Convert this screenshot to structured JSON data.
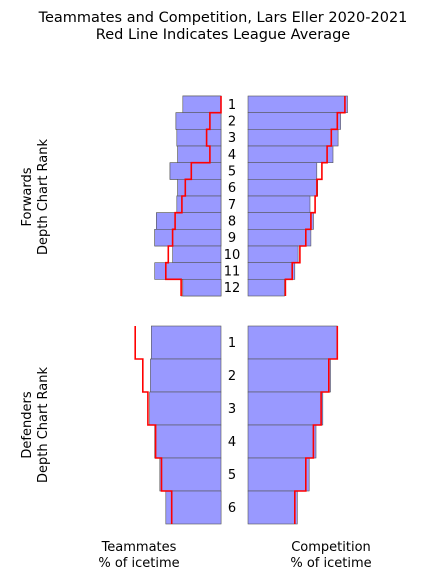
{
  "chart_data": {
    "type": "bar",
    "title": "Teammates and Competition, Lars Eller 2020-2021",
    "subtitle": "Red Line Indicates League Average",
    "colors": {
      "blue_bar": "#9999ff",
      "pink_bar": "#ff9999",
      "league_line": "#ff0000",
      "bar_edge": "#555555"
    },
    "column_labels": {
      "teammates": [
        "Teammates",
        "% of icetime"
      ],
      "competition": [
        "Competition",
        "% of icetime"
      ]
    },
    "groups": [
      {
        "key": "forwards",
        "ylabel": [
          "Forwards",
          "Depth Chart Rank"
        ],
        "ranks": [
          "1",
          "2",
          "3",
          "4",
          "5",
          "6",
          "7",
          "8",
          "9",
          "10",
          "11",
          "12"
        ],
        "teammates_value": [
          45,
          53,
          52,
          51,
          60,
          51,
          52,
          76,
          78,
          57,
          78,
          45
        ],
        "teammates_league_avg": [
          0,
          13,
          17,
          13,
          35,
          42,
          46,
          54,
          57,
          62,
          65,
          47
        ],
        "teammates_pink": [
          true,
          true,
          true,
          true,
          true,
          true,
          true,
          true,
          true,
          false,
          false,
          true
        ],
        "competition_value": [
          117,
          109,
          106,
          100,
          81,
          82,
          73,
          77,
          74,
          59,
          55,
          43
        ],
        "competition_league_avg": [
          114,
          105,
          98,
          93,
          87,
          81,
          79,
          74,
          68,
          61,
          52,
          44
        ]
      },
      {
        "key": "defenders",
        "ylabel": [
          "Defenders",
          "Depth Chart Rank"
        ],
        "ranks": [
          "1",
          "2",
          "3",
          "4",
          "5",
          "6"
        ],
        "teammates_value": [
          82,
          83,
          84,
          78,
          72,
          65
        ],
        "teammates_league_avg": [
          101,
          92,
          86,
          77,
          70,
          58
        ],
        "teammates_pink": [
          false,
          false,
          false,
          false,
          false,
          false
        ],
        "competition_value": [
          105,
          97,
          88,
          80,
          72,
          58
        ],
        "competition_league_avg": [
          105,
          95,
          86,
          77,
          68,
          55
        ]
      }
    ]
  }
}
